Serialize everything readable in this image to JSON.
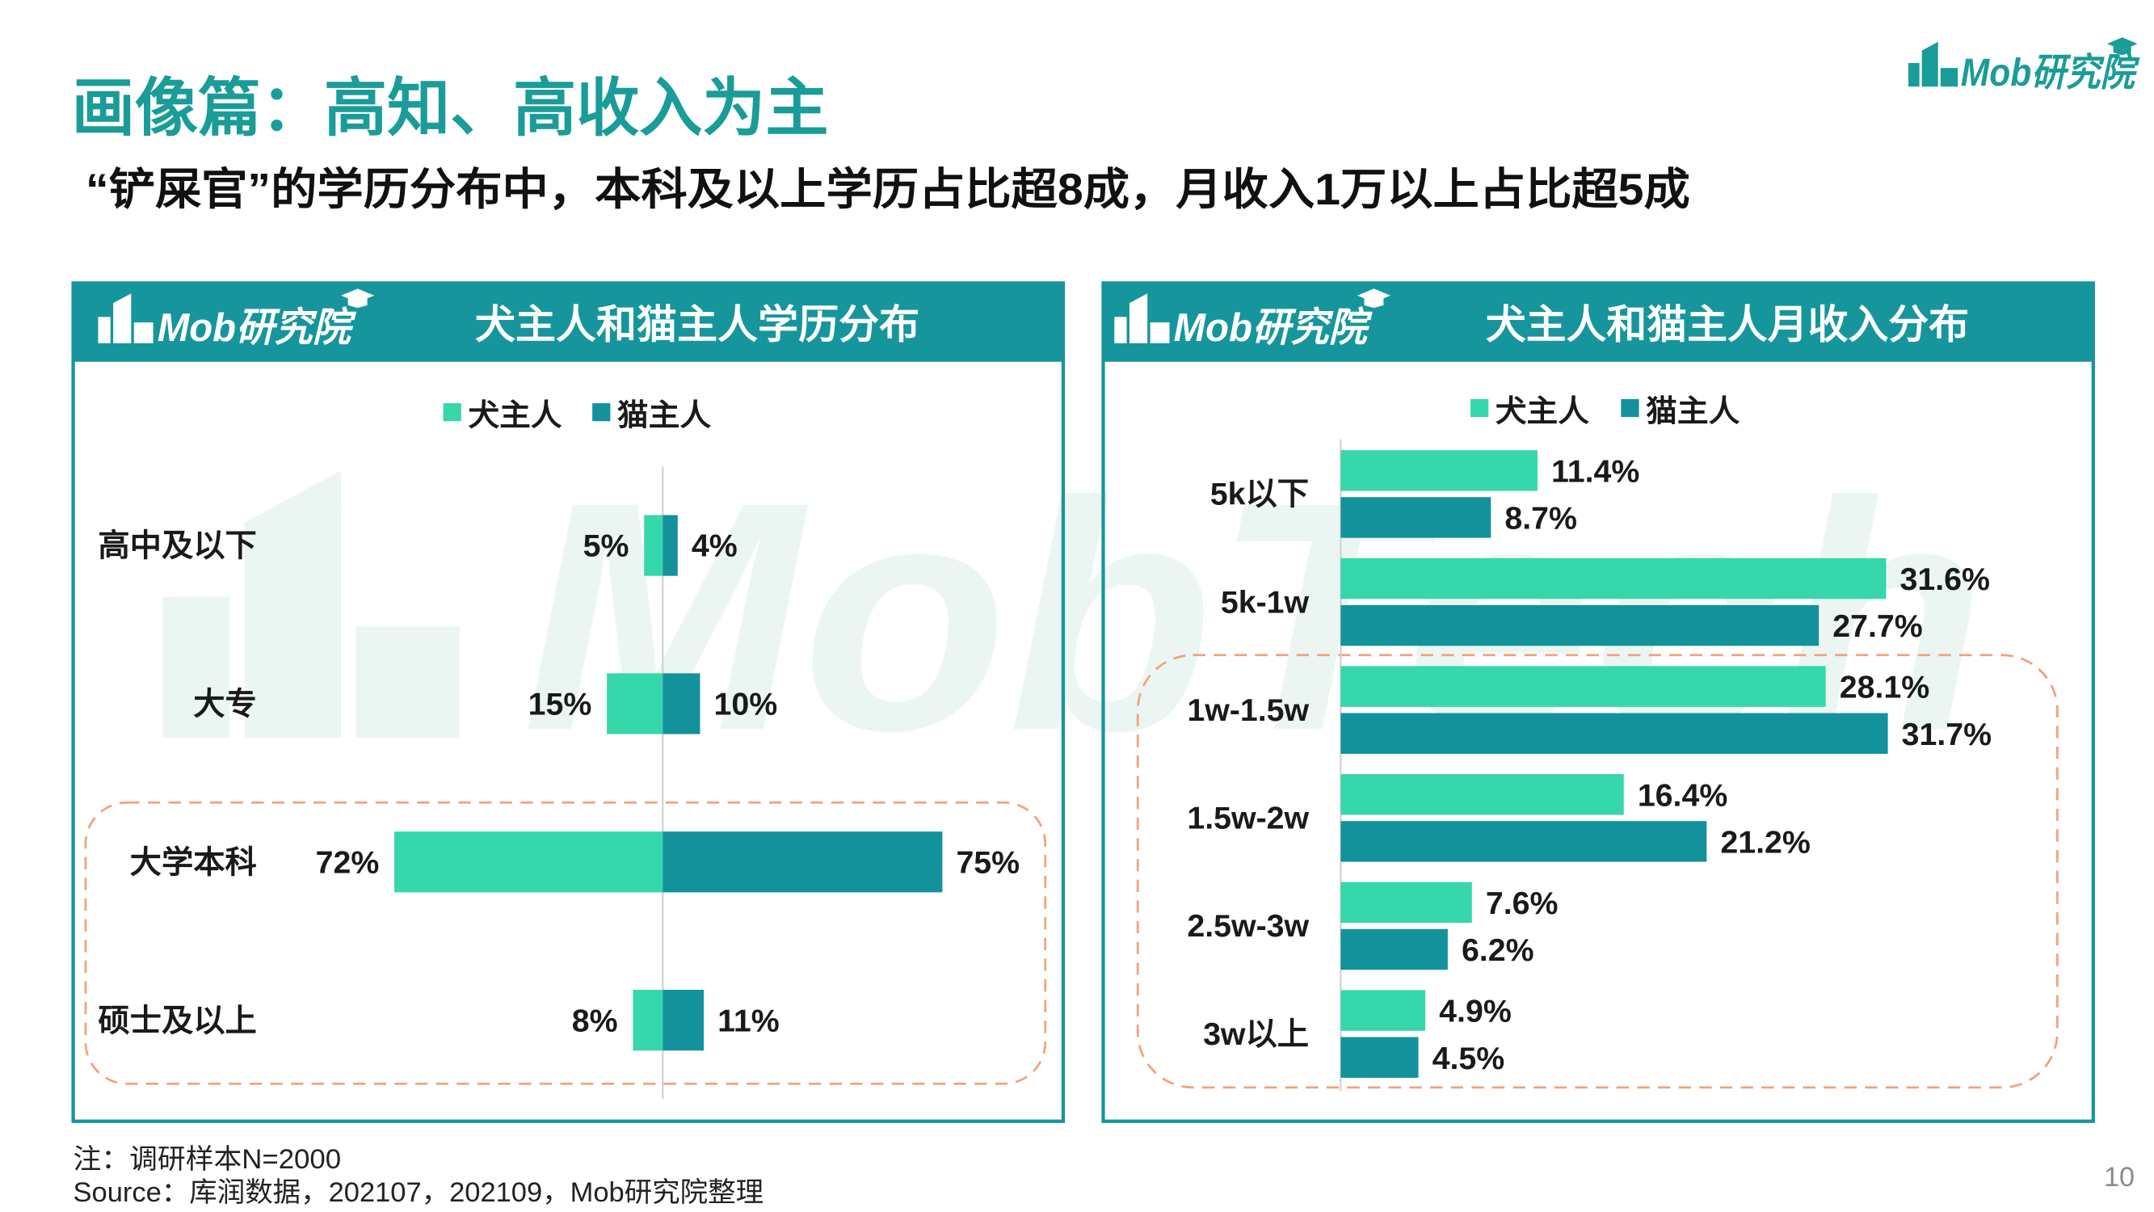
{
  "page": {
    "title": "画像篇：高知、高收入为主",
    "subtitle": "“铲屎官”的学历分布中，本科及以上学历占比超8成，月收入1万以上占比超5成",
    "brand_logo": "Mob研究院",
    "watermark": "MobTech",
    "note": "注：调研样本N=2000",
    "source": "Source：库润数据，202107，202109，Mob研究院整理",
    "page_number": "10"
  },
  "colors": {
    "accent": "#1a9c98",
    "header": "#16969c",
    "dog": "#36d7aa",
    "cat": "#13929b",
    "highlight": "#f2a27c"
  },
  "icons": {
    "brand": "building-logo-icon",
    "brand_cap": "graduation-cap-icon"
  },
  "chart_data": [
    {
      "type": "bar",
      "orientation": "horizontal",
      "style": "butterfly",
      "title": "犬主人和猫主人学历分布",
      "categories": [
        "高中及以下",
        "大专",
        "大学本科",
        "硕士及以上"
      ],
      "series": [
        {
          "name": "犬主人",
          "values": [
            5,
            15,
            72,
            8
          ],
          "color": "#36d7aa"
        },
        {
          "name": "猫主人",
          "values": [
            4,
            10,
            75,
            11
          ],
          "color": "#13929b"
        }
      ],
      "unit": "%",
      "legend": "top-center",
      "grid": false,
      "highlighted_categories": [
        "大学本科",
        "硕士及以上"
      ]
    },
    {
      "type": "bar",
      "orientation": "horizontal",
      "style": "grouped",
      "title": "犬主人和猫主人月收入分布",
      "categories": [
        "5k以下",
        "5k-1w",
        "1w-1.5w",
        "1.5w-2w",
        "2.5w-3w",
        "3w以上"
      ],
      "series": [
        {
          "name": "犬主人",
          "values": [
            11.4,
            31.6,
            28.1,
            16.4,
            7.6,
            4.9
          ],
          "color": "#36d7aa"
        },
        {
          "name": "猫主人",
          "values": [
            8.7,
            27.7,
            31.7,
            21.2,
            6.2,
            4.5
          ],
          "color": "#13929b"
        }
      ],
      "unit": "%",
      "legend": "top-center",
      "grid": false,
      "highlighted_categories": [
        "1w-1.5w",
        "1.5w-2w",
        "2.5w-3w",
        "3w以上"
      ]
    }
  ]
}
